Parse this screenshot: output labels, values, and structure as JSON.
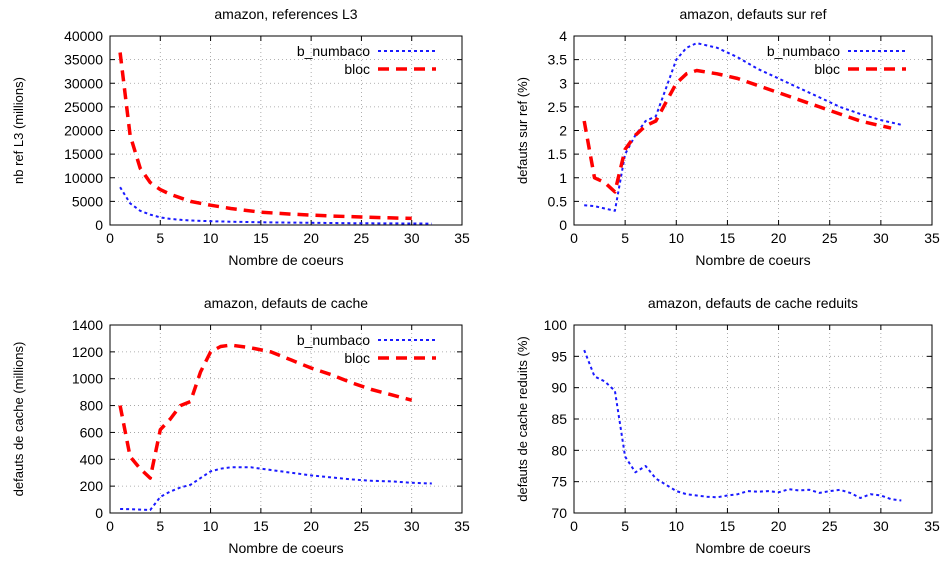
{
  "figure_caption": "                            ",
  "chart_data": [
    {
      "type": "line",
      "title": "amazon, references L3",
      "xlabel": "Nombre de coeurs",
      "ylabel": "nb ref L3 (millions)",
      "xlim": [
        0,
        35
      ],
      "ylim": [
        0,
        40000
      ],
      "xticks": [
        0,
        5,
        10,
        15,
        20,
        25,
        30,
        35
      ],
      "yticks": [
        0,
        5000,
        10000,
        15000,
        20000,
        25000,
        30000,
        35000,
        40000
      ],
      "grid": true,
      "legend_position": "top-right",
      "series": [
        {
          "name": "b_numbaco",
          "style": "dotted",
          "color": "#1a1aff",
          "x": [
            1,
            2,
            3,
            4,
            5,
            6,
            7,
            8,
            10,
            12,
            14,
            16,
            18,
            20,
            22,
            24,
            26,
            28,
            30,
            32
          ],
          "y": [
            8000,
            4600,
            3000,
            2200,
            1600,
            1300,
            1100,
            950,
            800,
            700,
            620,
            560,
            500,
            460,
            420,
            390,
            360,
            340,
            320,
            300
          ]
        },
        {
          "name": "bloc",
          "style": "dashed",
          "color": "#ff0000",
          "x": [
            1,
            2,
            3,
            4,
            5,
            6,
            8,
            10,
            12,
            15,
            18,
            20,
            22,
            25,
            28,
            30
          ],
          "y": [
            36500,
            19000,
            12000,
            9000,
            7500,
            6500,
            5000,
            4200,
            3500,
            2700,
            2300,
            2100,
            1900,
            1700,
            1500,
            1400
          ]
        }
      ]
    },
    {
      "type": "line",
      "title": "amazon, defauts sur ref",
      "xlabel": "Nombre de coeurs",
      "ylabel": "defauts sur ref (%)",
      "xlim": [
        0,
        35
      ],
      "ylim": [
        0,
        4
      ],
      "xticks": [
        0,
        5,
        10,
        15,
        20,
        25,
        30,
        35
      ],
      "yticks": [
        0,
        0.5,
        1,
        1.5,
        2,
        2.5,
        3,
        3.5,
        4
      ],
      "grid": true,
      "legend_position": "top-right",
      "series": [
        {
          "name": "b_numbaco",
          "style": "dotted",
          "color": "#1a1aff",
          "x": [
            1,
            2,
            3,
            4,
            5,
            6,
            7,
            8,
            9,
            10,
            11,
            12,
            14,
            16,
            18,
            20,
            22,
            24,
            26,
            28,
            30,
            32
          ],
          "y": [
            0.42,
            0.4,
            0.35,
            0.3,
            1.5,
            1.9,
            2.2,
            2.3,
            2.9,
            3.5,
            3.75,
            3.85,
            3.75,
            3.55,
            3.3,
            3.1,
            2.9,
            2.7,
            2.5,
            2.35,
            2.22,
            2.12
          ]
        },
        {
          "name": "bloc",
          "style": "dashed",
          "color": "#ff0000",
          "x": [
            1,
            2,
            3,
            4,
            5,
            6,
            7,
            8,
            9,
            10,
            11,
            12,
            14,
            16,
            18,
            20,
            22,
            24,
            26,
            28,
            30,
            31
          ],
          "y": [
            2.2,
            1.0,
            0.9,
            0.7,
            1.6,
            1.9,
            2.1,
            2.2,
            2.6,
            3.0,
            3.2,
            3.27,
            3.2,
            3.1,
            2.95,
            2.8,
            2.65,
            2.5,
            2.35,
            2.2,
            2.1,
            2.05
          ]
        }
      ]
    },
    {
      "type": "line",
      "title": "amazon, defauts de cache",
      "xlabel": "Nombre de coeurs",
      "ylabel": "defauts de cache (millions)",
      "xlim": [
        0,
        35
      ],
      "ylim": [
        0,
        1400
      ],
      "xticks": [
        0,
        5,
        10,
        15,
        20,
        25,
        30,
        35
      ],
      "yticks": [
        0,
        200,
        400,
        600,
        800,
        1000,
        1200,
        1400
      ],
      "grid": true,
      "legend_position": "top-right",
      "series": [
        {
          "name": "b_numbaco",
          "style": "dotted",
          "color": "#1a1aff",
          "x": [
            1,
            2,
            3,
            4,
            5,
            6,
            7,
            8,
            9,
            10,
            11,
            12,
            14,
            16,
            18,
            20,
            22,
            24,
            26,
            28,
            30,
            32
          ],
          "y": [
            30,
            28,
            25,
            22,
            120,
            160,
            190,
            210,
            260,
            310,
            330,
            340,
            340,
            320,
            300,
            280,
            265,
            250,
            240,
            235,
            225,
            220
          ]
        },
        {
          "name": "bloc",
          "style": "dashed",
          "color": "#ff0000",
          "x": [
            1,
            2,
            3,
            4,
            5,
            6,
            7,
            8,
            9,
            10,
            11,
            12,
            14,
            16,
            18,
            20,
            22,
            24,
            26,
            28,
            30
          ],
          "y": [
            800,
            420,
            330,
            260,
            620,
            700,
            800,
            830,
            1050,
            1200,
            1240,
            1250,
            1230,
            1200,
            1140,
            1080,
            1030,
            970,
            920,
            880,
            840
          ]
        }
      ]
    },
    {
      "type": "line",
      "title": "amazon, defauts de cache reduits",
      "xlabel": "Nombre de coeurs",
      "ylabel": "defauts de cache reduits (%)",
      "xlim": [
        0,
        35
      ],
      "ylim": [
        70,
        100
      ],
      "xticks": [
        0,
        5,
        10,
        15,
        20,
        25,
        30,
        35
      ],
      "yticks": [
        70,
        75,
        80,
        85,
        90,
        95,
        100
      ],
      "grid": true,
      "series": [
        {
          "style": "dotted",
          "color": "#1a1aff",
          "x": [
            1,
            2,
            3,
            4,
            5,
            6,
            7,
            8,
            9,
            10,
            11,
            12,
            13,
            14,
            15,
            16,
            17,
            18,
            19,
            20,
            21,
            22,
            23,
            24,
            25,
            26,
            27,
            28,
            29,
            30,
            31,
            32
          ],
          "y": [
            96,
            91.8,
            91,
            89.5,
            79,
            76.5,
            77.5,
            75.5,
            74.5,
            73.5,
            73,
            72.8,
            72.6,
            72.5,
            72.8,
            73,
            73.5,
            73.4,
            73.5,
            73.3,
            73.8,
            73.6,
            73.7,
            73.2,
            73.5,
            73.7,
            73.2,
            72.4,
            73,
            72.8,
            72.2,
            72
          ]
        }
      ]
    }
  ]
}
